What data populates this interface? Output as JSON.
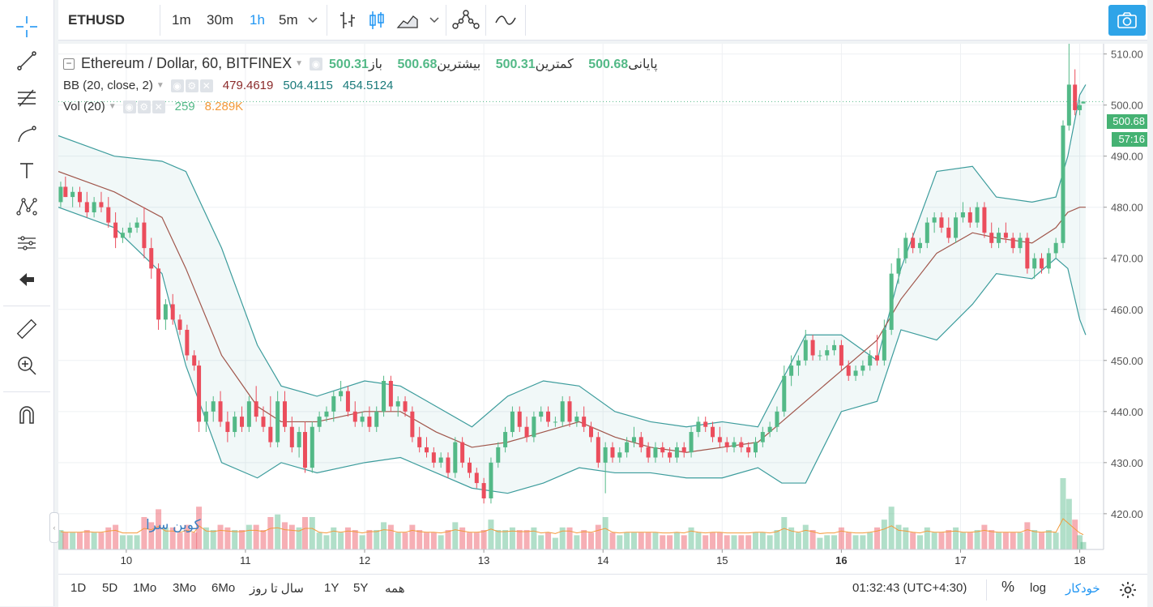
{
  "symbol": "ETHUSD",
  "intervals": [
    "1m",
    "30m",
    "1h",
    "5m"
  ],
  "active_interval": "1h",
  "legend": {
    "title": "Ethereum / Dollar, 60, BITFINEX",
    "open_label": "باز",
    "open": "500.31",
    "high_label": "بیشترین",
    "high": "500.68",
    "low_label": "کمترین",
    "low": "500.31",
    "close_label": "پایانی",
    "close": "500.68",
    "bb_label": "BB (20, close, 2)",
    "bb_basis": "479.4619",
    "bb_upper": "504.4115",
    "bb_lower": "454.5124",
    "vol_label": "Vol (20)",
    "vol_value": "259",
    "vol_ma": "8.289K"
  },
  "price_label": "500.68",
  "countdown_label": "57:16",
  "watermark": "کوین سرا",
  "bottom": {
    "ranges": [
      "1D",
      "5D",
      "1Mo",
      "3Mo",
      "6Mo",
      "سال تا روز",
      "1Y",
      "5Y",
      "همه"
    ],
    "time": "01:32:43 (UTC+4:30)",
    "percent": "%",
    "log": "log",
    "auto": "خودکار"
  },
  "colors": {
    "up": "#53b987",
    "down": "#eb4d5c",
    "bb_band": "#3c9c9c",
    "bb_mid": "#a0564b",
    "vol_ma": "#f39a3a",
    "accent": "#2196f3"
  },
  "chart_data": {
    "type": "candlestick",
    "x_tick_labels": [
      "10",
      "11",
      "12",
      "13",
      "14",
      "15",
      "16",
      "17",
      "18"
    ],
    "y_tick_labels": [
      "420.00",
      "430.00",
      "440.00",
      "450.00",
      "460.00",
      "470.00",
      "480.00",
      "490.00",
      "500.00",
      "510.00"
    ],
    "ylim": [
      413,
      512
    ],
    "xlim_days": [
      9.43,
      18.2
    ],
    "candles": [
      {
        "x": 9.45,
        "o": 481,
        "h": 485,
        "l": 480,
        "c": 484
      },
      {
        "x": 9.49,
        "o": 484,
        "h": 486,
        "l": 482,
        "c": 482
      },
      {
        "x": 9.55,
        "o": 482,
        "h": 484,
        "l": 480,
        "c": 483
      },
      {
        "x": 9.61,
        "o": 483,
        "h": 484,
        "l": 480,
        "c": 481
      },
      {
        "x": 9.67,
        "o": 481,
        "h": 483,
        "l": 478,
        "c": 479
      },
      {
        "x": 9.73,
        "o": 479,
        "h": 482,
        "l": 478,
        "c": 481
      },
      {
        "x": 9.79,
        "o": 481,
        "h": 483,
        "l": 479,
        "c": 480
      },
      {
        "x": 9.85,
        "o": 480,
        "h": 482,
        "l": 476,
        "c": 477
      },
      {
        "x": 9.91,
        "o": 477,
        "h": 479,
        "l": 472,
        "c": 474
      },
      {
        "x": 9.97,
        "o": 474,
        "h": 476,
        "l": 473,
        "c": 475
      },
      {
        "x": 10.03,
        "o": 475,
        "h": 477,
        "l": 474,
        "c": 476
      },
      {
        "x": 10.09,
        "o": 476,
        "h": 478,
        "l": 475,
        "c": 477
      },
      {
        "x": 10.15,
        "o": 477,
        "h": 480,
        "l": 470,
        "c": 472
      },
      {
        "x": 10.21,
        "o": 472,
        "h": 474,
        "l": 466,
        "c": 468
      },
      {
        "x": 10.27,
        "o": 468,
        "h": 469,
        "l": 456,
        "c": 458
      },
      {
        "x": 10.33,
        "o": 458,
        "h": 462,
        "l": 456,
        "c": 461
      },
      {
        "x": 10.39,
        "o": 461,
        "h": 463,
        "l": 457,
        "c": 458
      },
      {
        "x": 10.45,
        "o": 458,
        "h": 459,
        "l": 455,
        "c": 456
      },
      {
        "x": 10.51,
        "o": 456,
        "h": 457,
        "l": 450,
        "c": 451
      },
      {
        "x": 10.57,
        "o": 451,
        "h": 452,
        "l": 448,
        "c": 449
      },
      {
        "x": 10.61,
        "o": 449,
        "h": 450,
        "l": 436,
        "c": 438
      },
      {
        "x": 10.67,
        "o": 438,
        "h": 442,
        "l": 436,
        "c": 440
      },
      {
        "x": 10.73,
        "o": 440,
        "h": 443,
        "l": 438,
        "c": 442
      },
      {
        "x": 10.79,
        "o": 442,
        "h": 444,
        "l": 437,
        "c": 438
      },
      {
        "x": 10.85,
        "o": 438,
        "h": 440,
        "l": 434,
        "c": 436
      },
      {
        "x": 10.91,
        "o": 436,
        "h": 440,
        "l": 435,
        "c": 439
      },
      {
        "x": 10.97,
        "o": 439,
        "h": 441,
        "l": 436,
        "c": 437
      },
      {
        "x": 11.03,
        "o": 437,
        "h": 443,
        "l": 436,
        "c": 442
      },
      {
        "x": 11.09,
        "o": 442,
        "h": 445,
        "l": 438,
        "c": 439
      },
      {
        "x": 11.15,
        "o": 439,
        "h": 441,
        "l": 436,
        "c": 437
      },
      {
        "x": 11.21,
        "o": 437,
        "h": 443,
        "l": 433,
        "c": 434
      },
      {
        "x": 11.27,
        "o": 434,
        "h": 444,
        "l": 433,
        "c": 442
      },
      {
        "x": 11.33,
        "o": 442,
        "h": 444,
        "l": 436,
        "c": 437
      },
      {
        "x": 11.39,
        "o": 437,
        "h": 439,
        "l": 432,
        "c": 433
      },
      {
        "x": 11.45,
        "o": 433,
        "h": 437,
        "l": 431,
        "c": 436
      },
      {
        "x": 11.5,
        "o": 436,
        "h": 438,
        "l": 428,
        "c": 429
      },
      {
        "x": 11.56,
        "o": 429,
        "h": 438,
        "l": 428,
        "c": 437
      },
      {
        "x": 11.62,
        "o": 437,
        "h": 440,
        "l": 436,
        "c": 439
      },
      {
        "x": 11.68,
        "o": 439,
        "h": 441,
        "l": 438,
        "c": 440
      },
      {
        "x": 11.74,
        "o": 440,
        "h": 444,
        "l": 438,
        "c": 443
      },
      {
        "x": 11.8,
        "o": 443,
        "h": 446,
        "l": 442,
        "c": 444
      },
      {
        "x": 11.86,
        "o": 444,
        "h": 445,
        "l": 439,
        "c": 440
      },
      {
        "x": 11.92,
        "o": 440,
        "h": 442,
        "l": 437,
        "c": 438
      },
      {
        "x": 11.98,
        "o": 438,
        "h": 440,
        "l": 437,
        "c": 439
      },
      {
        "x": 12.04,
        "o": 439,
        "h": 441,
        "l": 436,
        "c": 437
      },
      {
        "x": 12.1,
        "o": 437,
        "h": 441,
        "l": 436,
        "c": 440
      },
      {
        "x": 12.16,
        "o": 440,
        "h": 447,
        "l": 439,
        "c": 446
      },
      {
        "x": 12.22,
        "o": 446,
        "h": 447,
        "l": 440,
        "c": 441
      },
      {
        "x": 12.28,
        "o": 441,
        "h": 443,
        "l": 439,
        "c": 442
      },
      {
        "x": 12.34,
        "o": 442,
        "h": 443,
        "l": 439,
        "c": 440
      },
      {
        "x": 12.4,
        "o": 440,
        "h": 441,
        "l": 434,
        "c": 435
      },
      {
        "x": 12.46,
        "o": 435,
        "h": 437,
        "l": 432,
        "c": 433
      },
      {
        "x": 12.52,
        "o": 433,
        "h": 435,
        "l": 431,
        "c": 432
      },
      {
        "x": 12.58,
        "o": 432,
        "h": 433,
        "l": 429,
        "c": 430
      },
      {
        "x": 12.64,
        "o": 430,
        "h": 432,
        "l": 429,
        "c": 431
      },
      {
        "x": 12.7,
        "o": 431,
        "h": 432,
        "l": 427,
        "c": 428
      },
      {
        "x": 12.76,
        "o": 428,
        "h": 435,
        "l": 427,
        "c": 434
      },
      {
        "x": 12.82,
        "o": 434,
        "h": 435,
        "l": 429,
        "c": 430
      },
      {
        "x": 12.88,
        "o": 430,
        "h": 431,
        "l": 427,
        "c": 428
      },
      {
        "x": 12.94,
        "o": 428,
        "h": 429,
        "l": 425,
        "c": 426
      },
      {
        "x": 13.0,
        "o": 426,
        "h": 427,
        "l": 422,
        "c": 423
      },
      {
        "x": 13.06,
        "o": 423,
        "h": 431,
        "l": 422,
        "c": 430
      },
      {
        "x": 13.12,
        "o": 430,
        "h": 434,
        "l": 429,
        "c": 433
      },
      {
        "x": 13.18,
        "o": 433,
        "h": 437,
        "l": 432,
        "c": 436
      },
      {
        "x": 13.24,
        "o": 436,
        "h": 441,
        "l": 435,
        "c": 440
      },
      {
        "x": 13.3,
        "o": 440,
        "h": 441,
        "l": 436,
        "c": 437
      },
      {
        "x": 13.36,
        "o": 437,
        "h": 439,
        "l": 434,
        "c": 435
      },
      {
        "x": 13.42,
        "o": 435,
        "h": 440,
        "l": 434,
        "c": 439
      },
      {
        "x": 13.48,
        "o": 439,
        "h": 441,
        "l": 438,
        "c": 440
      },
      {
        "x": 13.54,
        "o": 440,
        "h": 441,
        "l": 437,
        "c": 438
      },
      {
        "x": 13.6,
        "o": 438,
        "h": 439,
        "l": 437,
        "c": 438
      },
      {
        "x": 13.66,
        "o": 438,
        "h": 443,
        "l": 437,
        "c": 442
      },
      {
        "x": 13.72,
        "o": 442,
        "h": 443,
        "l": 437,
        "c": 438
      },
      {
        "x": 13.78,
        "o": 438,
        "h": 440,
        "l": 437,
        "c": 439
      },
      {
        "x": 13.84,
        "o": 439,
        "h": 441,
        "l": 436,
        "c": 437
      },
      {
        "x": 13.9,
        "o": 437,
        "h": 438,
        "l": 434,
        "c": 435
      },
      {
        "x": 13.96,
        "o": 435,
        "h": 436,
        "l": 429,
        "c": 430
      },
      {
        "x": 14.02,
        "o": 430,
        "h": 434,
        "l": 424,
        "c": 433
      },
      {
        "x": 14.08,
        "o": 433,
        "h": 434,
        "l": 430,
        "c": 431
      },
      {
        "x": 14.14,
        "o": 431,
        "h": 433,
        "l": 430,
        "c": 432
      },
      {
        "x": 14.2,
        "o": 432,
        "h": 435,
        "l": 431,
        "c": 434
      },
      {
        "x": 14.26,
        "o": 434,
        "h": 437,
        "l": 433,
        "c": 435
      },
      {
        "x": 14.32,
        "o": 435,
        "h": 436,
        "l": 432,
        "c": 433
      },
      {
        "x": 14.38,
        "o": 433,
        "h": 434,
        "l": 430,
        "c": 431
      },
      {
        "x": 14.44,
        "o": 431,
        "h": 434,
        "l": 430,
        "c": 433
      },
      {
        "x": 14.5,
        "o": 433,
        "h": 434,
        "l": 431,
        "c": 432
      },
      {
        "x": 14.56,
        "o": 432,
        "h": 433,
        "l": 430,
        "c": 431
      },
      {
        "x": 14.62,
        "o": 431,
        "h": 434,
        "l": 430,
        "c": 433
      },
      {
        "x": 14.68,
        "o": 433,
        "h": 434,
        "l": 431,
        "c": 432
      },
      {
        "x": 14.74,
        "o": 432,
        "h": 437,
        "l": 431,
        "c": 436
      },
      {
        "x": 14.8,
        "o": 436,
        "h": 439,
        "l": 435,
        "c": 438
      },
      {
        "x": 14.86,
        "o": 438,
        "h": 439,
        "l": 436,
        "c": 437
      },
      {
        "x": 14.92,
        "o": 437,
        "h": 438,
        "l": 434,
        "c": 435
      },
      {
        "x": 14.98,
        "o": 435,
        "h": 437,
        "l": 433,
        "c": 434
      },
      {
        "x": 15.04,
        "o": 434,
        "h": 435,
        "l": 432,
        "c": 433
      },
      {
        "x": 15.1,
        "o": 433,
        "h": 435,
        "l": 432,
        "c": 434
      },
      {
        "x": 15.16,
        "o": 434,
        "h": 435,
        "l": 432,
        "c": 433
      },
      {
        "x": 15.22,
        "o": 433,
        "h": 434,
        "l": 431,
        "c": 432
      },
      {
        "x": 15.28,
        "o": 432,
        "h": 435,
        "l": 431,
        "c": 434
      },
      {
        "x": 15.34,
        "o": 434,
        "h": 437,
        "l": 433,
        "c": 436
      },
      {
        "x": 15.4,
        "o": 436,
        "h": 438,
        "l": 435,
        "c": 437
      },
      {
        "x": 15.46,
        "o": 437,
        "h": 441,
        "l": 436,
        "c": 440
      },
      {
        "x": 15.52,
        "o": 440,
        "h": 449,
        "l": 439,
        "c": 447
      },
      {
        "x": 15.58,
        "o": 447,
        "h": 451,
        "l": 445,
        "c": 449
      },
      {
        "x": 15.64,
        "o": 449,
        "h": 451,
        "l": 447,
        "c": 450
      },
      {
        "x": 15.7,
        "o": 450,
        "h": 456,
        "l": 449,
        "c": 454
      },
      {
        "x": 15.76,
        "o": 454,
        "h": 455,
        "l": 450,
        "c": 451
      },
      {
        "x": 15.82,
        "o": 451,
        "h": 452,
        "l": 450,
        "c": 451
      },
      {
        "x": 15.88,
        "o": 451,
        "h": 453,
        "l": 450,
        "c": 452
      },
      {
        "x": 15.94,
        "o": 452,
        "h": 454,
        "l": 451,
        "c": 453
      },
      {
        "x": 16.0,
        "o": 453,
        "h": 454,
        "l": 448,
        "c": 449
      },
      {
        "x": 16.06,
        "o": 449,
        "h": 450,
        "l": 446,
        "c": 447
      },
      {
        "x": 16.12,
        "o": 447,
        "h": 449,
        "l": 446,
        "c": 448
      },
      {
        "x": 16.18,
        "o": 448,
        "h": 450,
        "l": 447,
        "c": 449
      },
      {
        "x": 16.24,
        "o": 449,
        "h": 452,
        "l": 448,
        "c": 451
      },
      {
        "x": 16.3,
        "o": 451,
        "h": 455,
        "l": 449,
        "c": 450
      },
      {
        "x": 16.36,
        "o": 450,
        "h": 458,
        "l": 449,
        "c": 456
      },
      {
        "x": 16.42,
        "o": 456,
        "h": 469,
        "l": 455,
        "c": 467
      },
      {
        "x": 16.48,
        "o": 467,
        "h": 472,
        "l": 465,
        "c": 470
      },
      {
        "x": 16.54,
        "o": 470,
        "h": 475,
        "l": 469,
        "c": 474
      },
      {
        "x": 16.6,
        "o": 474,
        "h": 475,
        "l": 471,
        "c": 472
      },
      {
        "x": 16.66,
        "o": 472,
        "h": 474,
        "l": 471,
        "c": 473
      },
      {
        "x": 16.72,
        "o": 473,
        "h": 478,
        "l": 472,
        "c": 477
      },
      {
        "x": 16.78,
        "o": 477,
        "h": 479,
        "l": 475,
        "c": 478
      },
      {
        "x": 16.84,
        "o": 478,
        "h": 479,
        "l": 475,
        "c": 476
      },
      {
        "x": 16.9,
        "o": 476,
        "h": 478,
        "l": 473,
        "c": 474
      },
      {
        "x": 16.96,
        "o": 474,
        "h": 479,
        "l": 473,
        "c": 478
      },
      {
        "x": 17.02,
        "o": 478,
        "h": 481,
        "l": 477,
        "c": 479
      },
      {
        "x": 17.08,
        "o": 479,
        "h": 480,
        "l": 476,
        "c": 477
      },
      {
        "x": 17.14,
        "o": 477,
        "h": 481,
        "l": 476,
        "c": 480
      },
      {
        "x": 17.2,
        "o": 480,
        "h": 481,
        "l": 474,
        "c": 475
      },
      {
        "x": 17.26,
        "o": 475,
        "h": 477,
        "l": 472,
        "c": 473
      },
      {
        "x": 17.32,
        "o": 473,
        "h": 476,
        "l": 472,
        "c": 475
      },
      {
        "x": 17.38,
        "o": 475,
        "h": 477,
        "l": 473,
        "c": 474
      },
      {
        "x": 17.44,
        "o": 474,
        "h": 475,
        "l": 471,
        "c": 472
      },
      {
        "x": 17.5,
        "o": 472,
        "h": 475,
        "l": 471,
        "c": 474
      },
      {
        "x": 17.56,
        "o": 474,
        "h": 475,
        "l": 467,
        "c": 468
      },
      {
        "x": 17.62,
        "o": 468,
        "h": 471,
        "l": 466,
        "c": 470
      },
      {
        "x": 17.68,
        "o": 470,
        "h": 471,
        "l": 467,
        "c": 468
      },
      {
        "x": 17.74,
        "o": 468,
        "h": 472,
        "l": 467,
        "c": 471
      },
      {
        "x": 17.8,
        "o": 471,
        "h": 474,
        "l": 470,
        "c": 473
      },
      {
        "x": 17.86,
        "o": 473,
        "h": 497,
        "l": 472,
        "c": 496
      },
      {
        "x": 17.91,
        "o": 496,
        "h": 512,
        "l": 495,
        "c": 504
      },
      {
        "x": 17.96,
        "o": 504,
        "h": 507,
        "l": 498,
        "c": 499
      },
      {
        "x": 18.0,
        "o": 499,
        "h": 501,
        "l": 498,
        "c": 500
      },
      {
        "x": 18.03,
        "o": 500.31,
        "h": 500.68,
        "l": 500.31,
        "c": 500.68
      }
    ],
    "bollinger": {
      "x": [
        9.43,
        9.9,
        10.3,
        10.5,
        10.8,
        11.1,
        11.3,
        11.6,
        12.0,
        12.3,
        12.6,
        12.9,
        13.2,
        13.5,
        13.8,
        14.1,
        14.4,
        14.7,
        15.0,
        15.3,
        15.5,
        15.7,
        16.0,
        16.3,
        16.5,
        16.8,
        17.1,
        17.3,
        17.6,
        17.8,
        17.9,
        18.0,
        18.05
      ],
      "upper": [
        494,
        490,
        489,
        487,
        472,
        453,
        445,
        443,
        446,
        445,
        441,
        437,
        443,
        446,
        445,
        440,
        438,
        437,
        438,
        437,
        446,
        455,
        455,
        450,
        468,
        487,
        488,
        482,
        481,
        482,
        490,
        502,
        504
      ],
      "basis": [
        487,
        483,
        478,
        468,
        451,
        441,
        438,
        438,
        440,
        440,
        436,
        433,
        434,
        436,
        438,
        435,
        433,
        432,
        433,
        434,
        438,
        442,
        448,
        454,
        462,
        471,
        475,
        474,
        473,
        476,
        479,
        480,
        480
      ],
      "lower": [
        480,
        476,
        467,
        449,
        430,
        427,
        430,
        428,
        430,
        431,
        428,
        425,
        424,
        426,
        429,
        428,
        428,
        427,
        427,
        429,
        426,
        426,
        440,
        442,
        456,
        454,
        461,
        467,
        466,
        470,
        468,
        458,
        455
      ]
    },
    "volume_ma_level": "approx",
    "legend": [
      "BB (20, close, 2)",
      "Vol (20)"
    ]
  }
}
